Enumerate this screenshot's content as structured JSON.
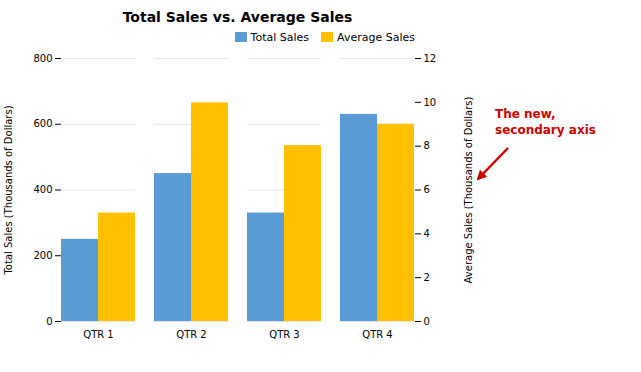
{
  "chart_data": {
    "type": "bar",
    "title": "Total Sales vs. Average Sales",
    "categories": [
      "QTR 1",
      "QTR 2",
      "QTR 3",
      "QTR 4"
    ],
    "series": [
      {
        "name": "Total Sales",
        "color": "#5B9BD5",
        "values": [
          250,
          450,
          330,
          630
        ],
        "axis": "y"
      },
      {
        "name": "Average Sales",
        "color": "#FFC000",
        "values": [
          4.95,
          9.975,
          8.025,
          9.0
        ],
        "axis": "y2"
      }
    ],
    "ylabel": "Total Sales (Thousands of Dollars)",
    "y2label": "Average Sales (Thousands of Dollars)",
    "ylim": [
      0,
      800
    ],
    "yticks": [
      0,
      200,
      400,
      600,
      800
    ],
    "y2lim": [
      0,
      12
    ],
    "y2ticks": [
      0,
      2,
      4,
      6,
      8,
      10,
      12
    ],
    "grid": true,
    "legend": "upper right",
    "annotations": [
      {
        "text": "The new,",
        "color": "#CC0000"
      },
      {
        "text": "secondary axis",
        "color": "#CC0000"
      }
    ]
  }
}
